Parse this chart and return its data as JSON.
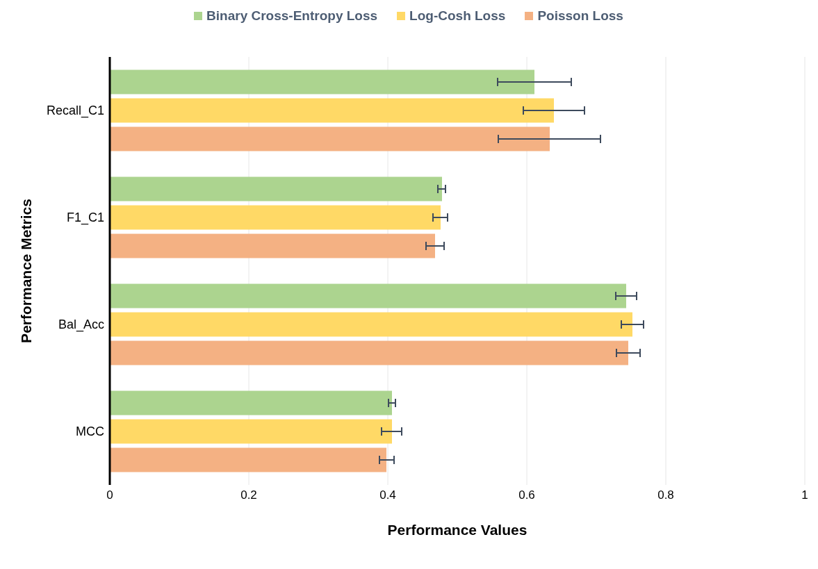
{
  "chart_data": {
    "type": "bar",
    "orientation": "horizontal",
    "xlabel": "Performance Values",
    "ylabel": "Performance Metrics",
    "categories": [
      "Recall_C1",
      "F1_C1",
      "Bal_Acc",
      "MCC"
    ],
    "series": [
      {
        "name": "Binary Cross-Entropy Loss",
        "color": "#acd48f",
        "values": [
          0.611,
          0.478,
          0.743,
          0.406
        ],
        "errors": [
          [
            0.558,
            0.664
          ],
          [
            0.472,
            0.483
          ],
          [
            0.728,
            0.758
          ],
          [
            0.401,
            0.411
          ]
        ]
      },
      {
        "name": "Log-Cosh Loss",
        "color": "#ffd966",
        "values": [
          0.639,
          0.476,
          0.752,
          0.406
        ],
        "errors": [
          [
            0.595,
            0.683
          ],
          [
            0.465,
            0.486
          ],
          [
            0.736,
            0.768
          ],
          [
            0.391,
            0.42
          ]
        ]
      },
      {
        "name": "Poisson Loss",
        "color": "#f4b183",
        "values": [
          0.633,
          0.468,
          0.746,
          0.398
        ],
        "errors": [
          [
            0.559,
            0.706
          ],
          [
            0.455,
            0.481
          ],
          [
            0.729,
            0.763
          ],
          [
            0.388,
            0.409
          ]
        ]
      }
    ],
    "xlim": [
      0,
      1
    ],
    "xticks": [
      0,
      0.2,
      0.4,
      0.6,
      0.8,
      1
    ],
    "grid": "x",
    "legend": "top"
  }
}
